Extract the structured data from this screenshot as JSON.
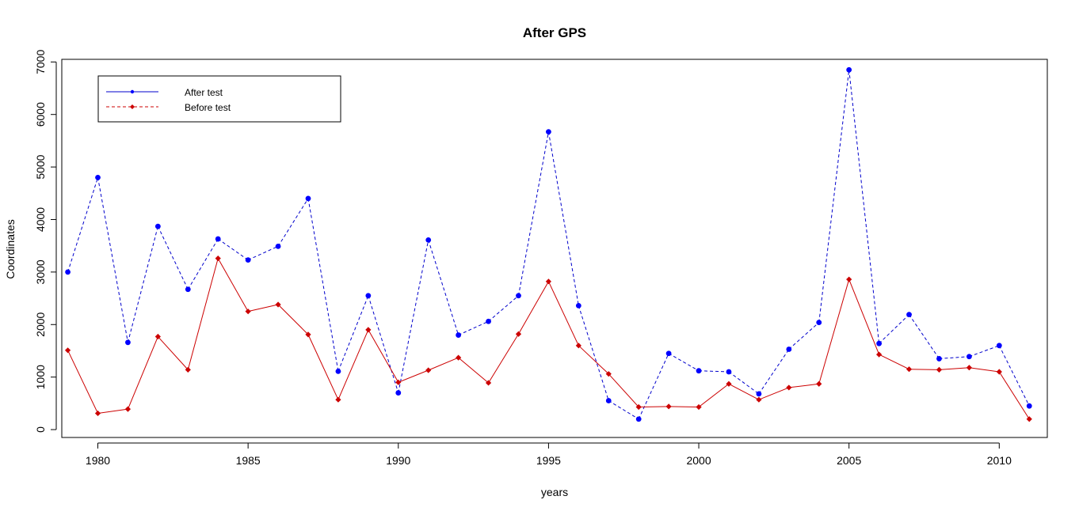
{
  "chart_data": {
    "type": "line",
    "title": "After GPS",
    "xlabel": "years",
    "ylabel": "Coordinates",
    "xlim": [
      1978.8,
      2011.6
    ],
    "ylim": [
      -150,
      7050
    ],
    "x_ticks": [
      1980,
      1985,
      1990,
      1995,
      2000,
      2005,
      2010
    ],
    "y_ticks": [
      0,
      1000,
      2000,
      3000,
      4000,
      5000,
      6000,
      7000
    ],
    "legend_position": "top-left",
    "grid": false,
    "x": [
      1979,
      1980,
      1981,
      1982,
      1983,
      1984,
      1985,
      1986,
      1987,
      1988,
      1989,
      1990,
      1991,
      1992,
      1993,
      1994,
      1995,
      1996,
      1997,
      1998,
      1999,
      2000,
      2001,
      2002,
      2003,
      2004,
      2005,
      2006,
      2007,
      2008,
      2009,
      2010,
      2011
    ],
    "series": [
      {
        "name": "After test",
        "color": "#0000cc",
        "marker_color": "#0000ff",
        "marker": "circle",
        "line_style": "dashed",
        "values": [
          3000,
          4800,
          1660,
          3870,
          2670,
          3630,
          3230,
          3490,
          4400,
          1110,
          2550,
          700,
          3610,
          1800,
          2060,
          2550,
          5670,
          2360,
          550,
          200,
          1450,
          1120,
          1100,
          680,
          1530,
          2040,
          6850,
          1640,
          2190,
          1350,
          1390,
          1600,
          450
        ]
      },
      {
        "name": "Before test",
        "color": "#cc0000",
        "marker_color": "#cc0000",
        "marker": "diamond",
        "line_style": "solid",
        "values": [
          1510,
          310,
          390,
          1770,
          1140,
          3260,
          2250,
          2380,
          1810,
          570,
          1900,
          900,
          1130,
          1370,
          890,
          1820,
          2820,
          1600,
          1060,
          430,
          440,
          430,
          870,
          570,
          800,
          870,
          2860,
          1430,
          1150,
          1140,
          1180,
          1100,
          200
        ]
      }
    ]
  }
}
